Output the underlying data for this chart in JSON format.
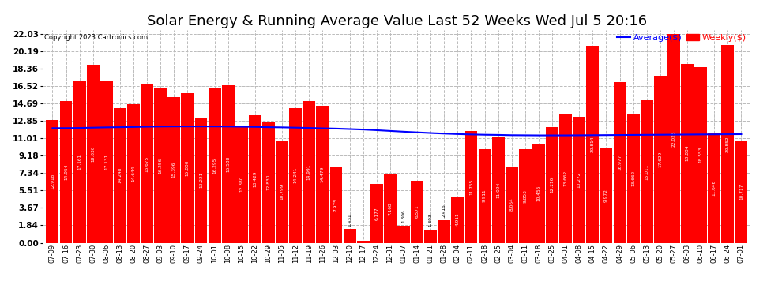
{
  "title": "Solar Energy & Running Average Value Last 52 Weeks Wed Jul 5 20:16",
  "copyright": "Copyright 2023 Cartronics.com",
  "legend_avg": "Average($)",
  "legend_weekly": "Weekly($)",
  "categories": [
    "07-09",
    "07-16",
    "07-23",
    "07-30",
    "08-06",
    "08-13",
    "08-20",
    "08-27",
    "09-03",
    "09-10",
    "09-17",
    "09-24",
    "10-01",
    "10-08",
    "10-15",
    "10-22",
    "10-29",
    "11-05",
    "11-12",
    "11-19",
    "11-26",
    "12-03",
    "12-10",
    "12-17",
    "12-24",
    "12-31",
    "01-07",
    "01-14",
    "01-21",
    "01-28",
    "02-04",
    "02-11",
    "02-18",
    "02-25",
    "03-04",
    "03-11",
    "03-18",
    "03-25",
    "04-01",
    "04-08",
    "04-15",
    "04-22",
    "04-29",
    "05-06",
    "05-13",
    "05-20",
    "05-27",
    "06-03",
    "06-10",
    "06-17",
    "06-24",
    "07-01"
  ],
  "bar_values": [
    12.918,
    14.954,
    17.161,
    18.83,
    17.131,
    14.248,
    14.644,
    16.675,
    16.256,
    15.396,
    15.8,
    13.221,
    16.295,
    16.588,
    12.38,
    13.429,
    12.83,
    10.799,
    14.241,
    14.991,
    14.479,
    7.975,
    1.431,
    0.243,
    6.177,
    7.168,
    1.806,
    6.571,
    1.393,
    2.416,
    4.911,
    11.755,
    9.911,
    11.094,
    8.064,
    9.853,
    10.455,
    12.216,
    13.662,
    13.272,
    20.814,
    9.972,
    16.977,
    13.662,
    15.011,
    17.629,
    22.028,
    18.884,
    18.553,
    11.646,
    20.852,
    10.717
  ],
  "avg_values": [
    12.1,
    12.1,
    12.12,
    12.15,
    12.18,
    12.2,
    12.22,
    12.25,
    12.27,
    12.28,
    12.28,
    12.28,
    12.28,
    12.27,
    12.25,
    12.23,
    12.2,
    12.18,
    12.15,
    12.12,
    12.08,
    12.05,
    12.0,
    11.95,
    11.88,
    11.8,
    11.72,
    11.65,
    11.58,
    11.52,
    11.47,
    11.43,
    11.4,
    11.38,
    11.35,
    11.34,
    11.33,
    11.33,
    11.33,
    11.34,
    11.35,
    11.36,
    11.37,
    11.38,
    11.39,
    11.4,
    11.41,
    11.42,
    11.43,
    11.44,
    11.45,
    11.46
  ],
  "bar_color": "#ff0000",
  "avg_line_color": "#0000ff",
  "background_color": "#ffffff",
  "grid_color": "#bbbbbb",
  "title_fontsize": 13,
  "ytick_values": [
    0.0,
    1.84,
    3.67,
    5.51,
    7.34,
    9.18,
    11.01,
    12.85,
    14.69,
    16.52,
    18.36,
    20.19,
    22.03
  ],
  "ymax": 22.5,
  "ymin": 0.0
}
